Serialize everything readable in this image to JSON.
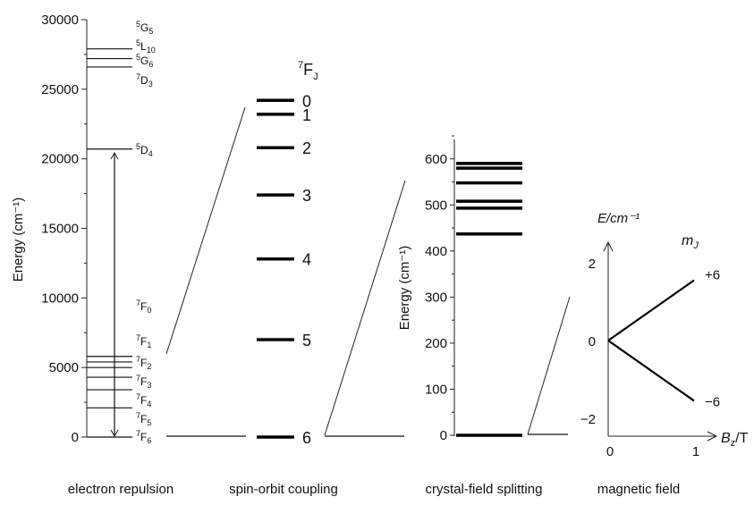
{
  "panels": {
    "electron_repulsion": {
      "caption": "electron repulsion",
      "ylabel": "Energy (cm⁻¹)",
      "ticks": [
        0,
        5000,
        10000,
        15000,
        20000,
        25000,
        30000
      ],
      "levels": [
        {
          "sup": "5",
          "term": "G",
          "sub": "5",
          "energy": 28500,
          "line": false
        },
        {
          "sup": "5",
          "term": "L",
          "sub": "10",
          "energy": 27900,
          "line": true
        },
        {
          "sup": "5",
          "term": "G",
          "sub": "6",
          "energy": 27200,
          "line": true
        },
        {
          "sup": "7",
          "term": "D",
          "sub": "3",
          "energy": 26600,
          "line": true
        },
        {
          "sup": "5",
          "term": "D",
          "sub": "4",
          "energy": 20700,
          "line": true
        },
        {
          "sup": "7",
          "term": "F",
          "sub": "0",
          "energy": 5800,
          "line": true
        },
        {
          "sup": "7",
          "term": "F",
          "sub": "1",
          "energy": 5400,
          "line": true
        },
        {
          "sup": "7",
          "term": "F",
          "sub": "2",
          "energy": 5000,
          "line": true
        },
        {
          "sup": "7",
          "term": "F",
          "sub": "3",
          "energy": 4300,
          "line": true
        },
        {
          "sup": "7",
          "term": "F",
          "sub": "4",
          "energy": 3400,
          "line": true
        },
        {
          "sup": "7",
          "term": "F",
          "sub": "5",
          "energy": 2100,
          "line": true
        },
        {
          "sup": "7",
          "term": "F",
          "sub": "6",
          "energy": 0,
          "line": true
        }
      ]
    },
    "spin_orbit": {
      "caption": "spin-orbit coupling",
      "header": {
        "sup": "7",
        "term": "F",
        "sub": "J"
      },
      "levels": [
        {
          "label": "0",
          "y": 24200
        },
        {
          "label": "1",
          "y": 23200
        },
        {
          "label": "2",
          "y": 20800
        },
        {
          "label": "3",
          "y": 17400
        },
        {
          "label": "4",
          "y": 12800
        },
        {
          "label": "5",
          "y": 7000
        },
        {
          "label": "6",
          "y": 0
        }
      ]
    },
    "crystal_field": {
      "caption": "crystal-field splitting",
      "ylabel": "Energy (cm⁻¹)",
      "ticks": [
        0,
        100,
        200,
        300,
        400,
        500,
        600
      ],
      "levels": [
        0,
        437,
        493,
        508,
        548,
        580,
        590
      ]
    },
    "magnetic_field": {
      "caption": "magnetic field",
      "ylabel": "E/cm⁻¹",
      "xlabel": "Bz/T",
      "xlabel_main": "B",
      "xlabel_sub": "z",
      "xlabel_unit": "/T",
      "mj_label": "m",
      "mj_sub": "J",
      "yticks": [
        {
          "value": 2,
          "text": "2"
        },
        {
          "value": 0,
          "text": "0"
        },
        {
          "value": -2,
          "text": "−2"
        }
      ],
      "xticks": [
        {
          "value": 0,
          "text": "0"
        },
        {
          "value": 1,
          "text": "1"
        }
      ],
      "lines": [
        {
          "label": "+6",
          "start": 0,
          "end": 1.55
        },
        {
          "label": "−6",
          "start": 0,
          "end": -1.55
        }
      ]
    }
  }
}
